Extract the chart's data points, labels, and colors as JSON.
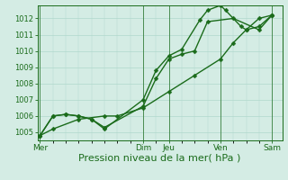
{
  "title": "",
  "xlabel": "Pression niveau de la mer( hPa )",
  "ylabel": "",
  "background_color": "#d4ece4",
  "grid_color": "#b0d8cc",
  "line_color": "#1a6b1a",
  "ylim": [
    1004.5,
    1012.8
  ],
  "yticks": [
    1005,
    1006,
    1007,
    1008,
    1009,
    1010,
    1011,
    1012
  ],
  "day_labels": [
    "Mer",
    "Dim",
    "Jeu",
    "Ven",
    "Sam"
  ],
  "day_positions": [
    0.0,
    4.0,
    5.0,
    7.0,
    9.0
  ],
  "line1_x": [
    0.0,
    0.5,
    1.5,
    2.5,
    3.0,
    4.0,
    5.0,
    6.0,
    7.0,
    7.5,
    8.0,
    8.5,
    9.0
  ],
  "line1_y": [
    1004.8,
    1005.2,
    1005.8,
    1006.0,
    1006.0,
    1006.5,
    1007.5,
    1008.5,
    1009.5,
    1010.5,
    1011.3,
    1011.5,
    1012.2
  ],
  "line2_x": [
    0.0,
    0.5,
    1.0,
    1.5,
    2.0,
    2.5,
    4.0,
    4.5,
    5.0,
    5.5,
    6.0,
    6.5,
    7.5,
    8.5,
    9.0
  ],
  "line2_y": [
    1004.8,
    1006.0,
    1006.1,
    1006.0,
    1005.8,
    1005.3,
    1006.6,
    1008.3,
    1009.5,
    1009.8,
    1010.0,
    1011.8,
    1012.0,
    1011.3,
    1012.2
  ],
  "line3_x": [
    0.0,
    0.5,
    1.0,
    1.5,
    2.0,
    2.5,
    4.0,
    4.5,
    5.0,
    5.5,
    6.2,
    6.5,
    7.0,
    7.2,
    7.8,
    8.0,
    8.5,
    9.0
  ],
  "line3_y": [
    1004.8,
    1006.0,
    1006.1,
    1006.0,
    1005.8,
    1005.2,
    1007.0,
    1008.8,
    1009.7,
    1010.1,
    1011.9,
    1012.5,
    1012.8,
    1012.5,
    1011.5,
    1011.3,
    1012.0,
    1012.2
  ],
  "xlim": [
    -0.1,
    9.4
  ],
  "marker_size": 2.5,
  "line_width": 1.0,
  "xlabel_fontsize": 8,
  "ytick_fontsize": 6,
  "xtick_fontsize": 6.5
}
